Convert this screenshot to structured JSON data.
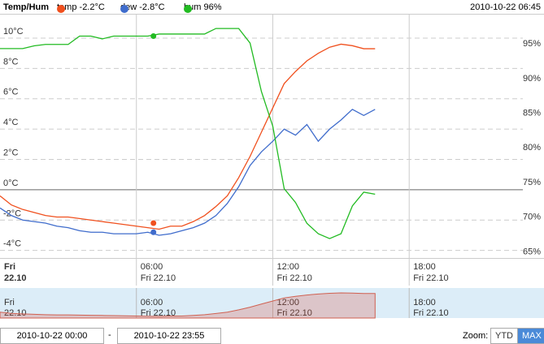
{
  "chart_data": {
    "type": "line",
    "title": "Temp/Hum",
    "hover_time": "2010-10-22 06:45",
    "hover_x": "06:45",
    "x": [
      "00:00",
      "00:30",
      "01:00",
      "01:30",
      "02:00",
      "02:30",
      "03:00",
      "03:30",
      "04:00",
      "04:30",
      "05:00",
      "05:30",
      "06:00",
      "06:30",
      "07:00",
      "07:30",
      "08:00",
      "08:30",
      "09:00",
      "09:30",
      "10:00",
      "10:30",
      "11:00",
      "11:30",
      "12:00",
      "12:30",
      "13:00",
      "13:30",
      "14:00",
      "14:30",
      "15:00",
      "15:30",
      "16:00",
      "16:30"
    ],
    "series": [
      {
        "name": "temp",
        "color": "#f0501e",
        "axis": "y",
        "hover_value": -2.2,
        "value_label": "-2.2°C",
        "values": [
          -0.4,
          -1.0,
          -1.3,
          -1.5,
          -1.7,
          -1.8,
          -1.8,
          -1.9,
          -2.0,
          -2.1,
          -2.2,
          -2.3,
          -2.4,
          -2.5,
          -2.6,
          -2.4,
          -2.4,
          -2.1,
          -1.7,
          -1.1,
          -0.4,
          0.8,
          2.2,
          3.8,
          5.4,
          7.0,
          7.8,
          8.5,
          9.0,
          9.4,
          9.6,
          9.5,
          9.3,
          9.3
        ]
      },
      {
        "name": "dew",
        "color": "#3f6ccc",
        "axis": "y",
        "hover_value": -2.8,
        "value_label": "-2.8°C",
        "values": [
          -1.2,
          -1.7,
          -2.0,
          -2.1,
          -2.2,
          -2.4,
          -2.5,
          -2.7,
          -2.8,
          -2.8,
          -2.9,
          -2.9,
          -2.9,
          -2.8,
          -3.0,
          -2.9,
          -2.7,
          -2.5,
          -2.2,
          -1.7,
          -0.9,
          0.2,
          1.6,
          2.5,
          3.2,
          4.0,
          3.6,
          4.3,
          3.2,
          4.0,
          4.6,
          5.3,
          4.9,
          5.3
        ]
      },
      {
        "name": "hum",
        "color": "#22bb22",
        "axis": "y2",
        "hover_value": 96,
        "value_label": "96%",
        "values": [
          94.2,
          94.2,
          94.2,
          94.6,
          94.8,
          94.8,
          94.8,
          96.0,
          96.0,
          95.6,
          96.0,
          96.0,
          96.0,
          96.0,
          96.3,
          96.3,
          96.3,
          96.3,
          96.3,
          97.1,
          97.1,
          97.1,
          95.0,
          88.0,
          83.0,
          74.0,
          72.0,
          69.0,
          67.5,
          66.8,
          67.5,
          71.5,
          73.5,
          73.2
        ]
      }
    ],
    "xlim": [
      "00:00",
      "23:00"
    ],
    "xticks": [
      {
        "value": "00:00",
        "label": "Fri",
        "sublabel": "22.10"
      },
      {
        "value": "06:00",
        "label": "06:00",
        "sublabel": "Fri 22.10"
      },
      {
        "value": "12:00",
        "label": "12:00",
        "sublabel": "Fri 22.10"
      },
      {
        "value": "18:00",
        "label": "18:00",
        "sublabel": "Fri 22.10"
      }
    ],
    "ylim": [
      -4.5,
      11.55
    ],
    "yticks": [
      {
        "value": -4,
        "label": "-4°C"
      },
      {
        "value": -2,
        "label": "-2°C"
      },
      {
        "value": 0,
        "label": "0°C"
      },
      {
        "value": 2,
        "label": "2°C"
      },
      {
        "value": 4,
        "label": "4°C"
      },
      {
        "value": 6,
        "label": "6°C"
      },
      {
        "value": 8,
        "label": "8°C"
      },
      {
        "value": 10,
        "label": "10°C"
      }
    ],
    "y2lim": [
      64,
      99.1
    ],
    "y2ticks": [
      {
        "value": 65,
        "label": "65%"
      },
      {
        "value": 70,
        "label": "70%"
      },
      {
        "value": 75,
        "label": "75%"
      },
      {
        "value": 80,
        "label": "80%"
      },
      {
        "value": 85,
        "label": "85%"
      },
      {
        "value": 90,
        "label": "90%"
      },
      {
        "value": 95,
        "label": "95%"
      }
    ],
    "grid": true,
    "navigator_series": 0,
    "range_start": "2010-10-22 00:00",
    "range_separator": "-",
    "range_end": "2010-10-22 23:55",
    "zoom_label": "Zoom:",
    "zoom_buttons": [
      "YTD",
      "MAX"
    ],
    "zoom_selected": 1
  }
}
